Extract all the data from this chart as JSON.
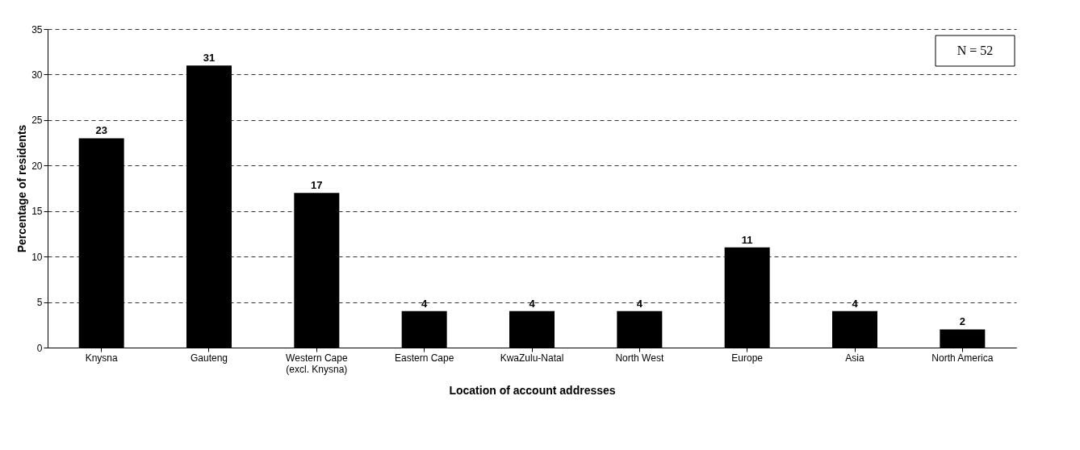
{
  "chart_data": {
    "type": "bar",
    "xlabel": "Location of account addresses",
    "ylabel": "Percentage of residents",
    "categories": [
      "Knysna",
      "Gauteng",
      "Western Cape\n(excl. Knysna)",
      "Eastern Cape",
      "KwaZulu-Natal",
      "North West",
      "Europe",
      "Asia",
      "North America"
    ],
    "values": [
      23,
      31,
      17,
      4,
      4,
      4,
      11,
      4,
      2
    ],
    "color": "#000000",
    "ylim": [
      0,
      35
    ],
    "yticks": [
      0,
      5,
      10,
      15,
      20,
      25,
      30,
      35
    ],
    "grid": "y",
    "data_labels": true,
    "annotations": [
      "N = 52"
    ]
  }
}
